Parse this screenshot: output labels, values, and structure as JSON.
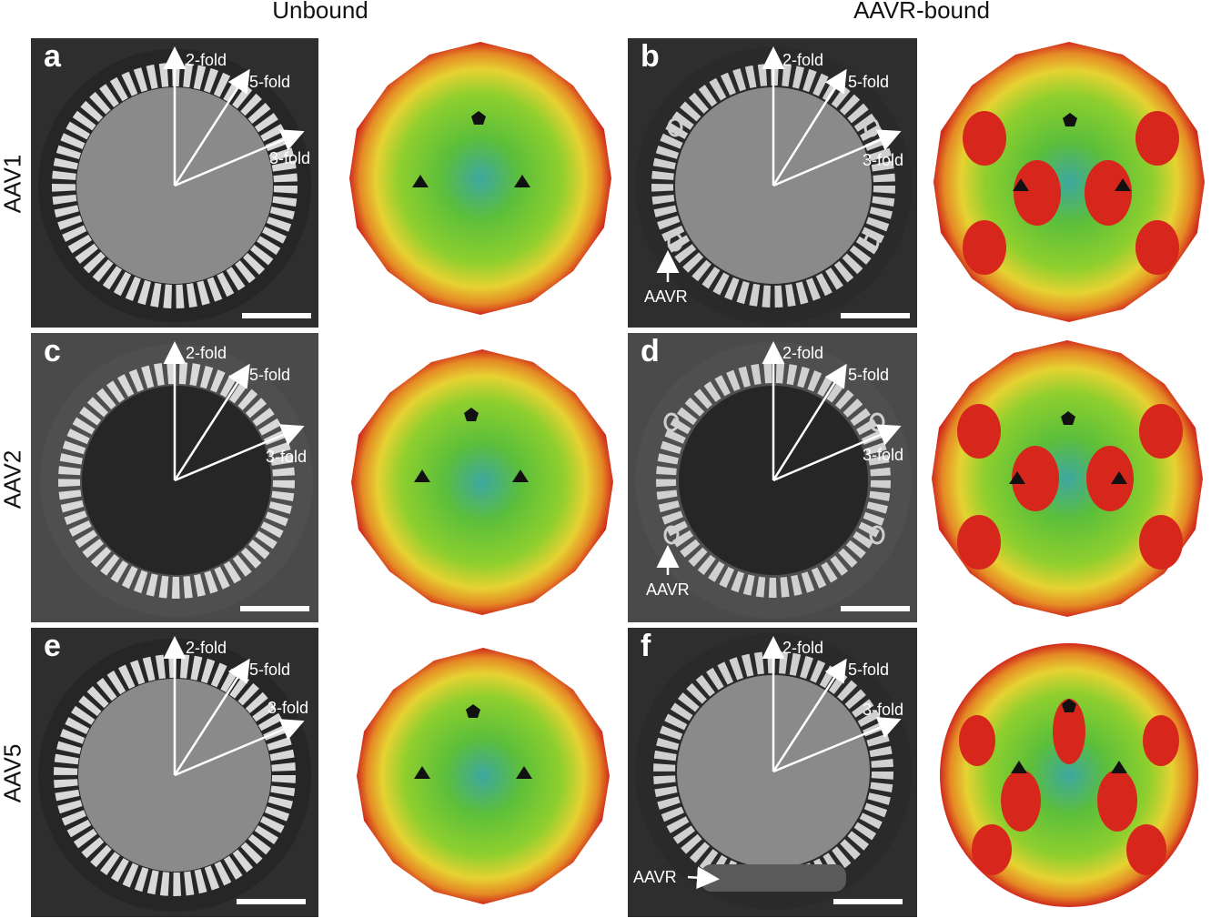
{
  "columns": {
    "left": "Unbound",
    "right": "AAVR-bound"
  },
  "rows": [
    "AAV1",
    "AAV2",
    "AAV5"
  ],
  "panels": {
    "a": {
      "letter": "a",
      "two": "2-fold",
      "five": "5-fold",
      "three": "3-fold"
    },
    "b": {
      "letter": "b",
      "two": "2-fold",
      "five": "5-fold",
      "three": "3-fold",
      "receptor": "AAVR"
    },
    "c": {
      "letter": "c",
      "two": "2-fold",
      "five": "5-fold",
      "three": "3-fold"
    },
    "d": {
      "letter": "d",
      "two": "2-fold",
      "five": "5-fold",
      "three": "3-fold",
      "receptor": "AAVR"
    },
    "e": {
      "letter": "e",
      "two": "2-fold",
      "five": "5-fold",
      "three": "3-fold"
    },
    "f": {
      "letter": "f",
      "two": "2-fold",
      "five": "5-fold",
      "three": "3-fold",
      "receptor": "AAVR"
    }
  },
  "colors": {
    "panel_bg": "#2e2e2e",
    "surface_red": "#d8231b",
    "surface_yellow": "#e9d330",
    "surface_green": "#67c12e",
    "surface_blue": "#2a8fc9"
  }
}
